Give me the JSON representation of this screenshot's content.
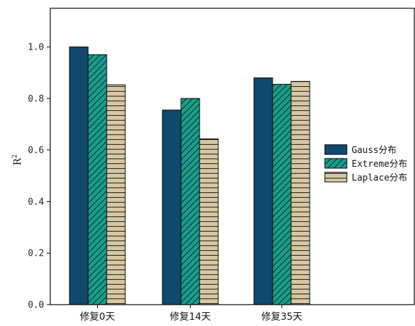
{
  "chart_data": {
    "type": "bar",
    "categories": [
      "修复0天",
      "修复14天",
      "修复35天"
    ],
    "series": [
      {
        "name": "Gauss分布",
        "values": [
          1.0,
          0.755,
          0.88
        ],
        "color": "#0d4a6e",
        "pattern": "solid"
      },
      {
        "name": "Extreme分布",
        "values": [
          0.97,
          0.8,
          0.855
        ],
        "color": "#1a9e8c",
        "pattern": "diagonal-hatch"
      },
      {
        "name": "Laplace分布",
        "values": [
          0.853,
          0.643,
          0.866
        ],
        "color": "#d6c6a0",
        "pattern": "horizontal-hatch"
      }
    ],
    "ylabel": "R",
    "ylabel_superscript": "2",
    "ylim": [
      0,
      1.15
    ],
    "yticks": [
      "0.0",
      "0.2",
      "0.4",
      "0.6",
      "0.8",
      "1.0"
    ],
    "grid": false,
    "legend_position": "right"
  }
}
